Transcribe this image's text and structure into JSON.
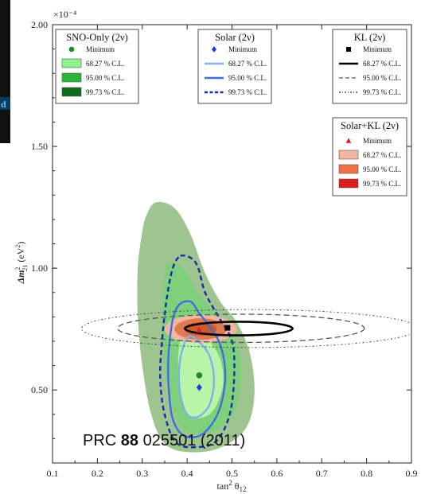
{
  "chart_data": {
    "type": "contour",
    "xlabel": "tan²θ₁₂",
    "ylabel": "Δm²₂₁ (eV²)",
    "y_scale_label": "×10⁻⁴",
    "xlim": [
      0.1,
      0.9
    ],
    "ylim": [
      0.2,
      2.0
    ],
    "x_ticks": [
      "0.1",
      "0.2",
      "0.3",
      "0.4",
      "0.5",
      "0.6",
      "0.7",
      "0.8",
      "0.9"
    ],
    "y_ticks": [
      "0.50",
      "1.00",
      "1.50",
      "2.00"
    ],
    "x_tick_values": [
      0.1,
      0.2,
      0.3,
      0.4,
      0.5,
      0.6,
      0.7,
      0.8,
      0.9
    ],
    "y_tick_values": [
      0.5,
      1.0,
      1.5,
      2.0
    ],
    "legends": [
      {
        "title": "SNO-Only (2ν)",
        "items": [
          {
            "label": "Minimum",
            "marker": "circle",
            "color": "#1e8a2e"
          },
          {
            "label": "68.27 % C.L.",
            "color": "#8ef58e"
          },
          {
            "label": "95.00 % C.L.",
            "color": "#2bb33a"
          },
          {
            "label": "99.73 % C.L.",
            "color": "#0d6b1a"
          }
        ]
      },
      {
        "title": "Solar (2ν)",
        "items": [
          {
            "label": "Minimum",
            "marker": "diamond",
            "color": "#2a3ad8"
          },
          {
            "label": "68.27 % C.L.",
            "color": "#7fb0f0"
          },
          {
            "label": "95.00 % C.L.",
            "color": "#3d6fe0"
          },
          {
            "label": "99.73 % C.L.",
            "color": "#1a2aa8"
          }
        ]
      },
      {
        "title": "KL (2ν)",
        "items": [
          {
            "label": "Minimum",
            "marker": "square",
            "color": "#000000"
          },
          {
            "label": "68.27 % C.L.",
            "color": "#000000"
          },
          {
            "label": "95.00 % C.L.",
            "color": "#555555"
          },
          {
            "label": "99.73 % C.L.",
            "color": "#333333"
          }
        ]
      },
      {
        "title": "Solar+KL (2ν)",
        "items": [
          {
            "label": "Minimum",
            "marker": "triangle",
            "color": "#d42020"
          },
          {
            "label": "68.27 % C.L.",
            "color": "#f4b6a0"
          },
          {
            "label": "95.00 % C.L.",
            "color": "#ee7046"
          },
          {
            "label": "99.73 % C.L.",
            "color": "#dd1e1e"
          }
        ]
      }
    ],
    "minima": [
      {
        "name": "SNO-Only",
        "x": 0.427,
        "y": 0.56,
        "marker": "circle",
        "color": "#1e8a2e"
      },
      {
        "name": "Solar",
        "x": 0.427,
        "y": 0.51,
        "marker": "diamond",
        "color": "#2a3ad8"
      },
      {
        "name": "KL",
        "x": 0.49,
        "y": 0.755,
        "marker": "square",
        "color": "#000000"
      },
      {
        "name": "Solar+KL",
        "x": 0.427,
        "y": 0.745,
        "marker": "triangle",
        "color": "#d42020"
      }
    ],
    "regions": {
      "sno": [
        {
          "cl": "99.73",
          "fill": "#9ec48f",
          "points": [
            [
              0.33,
              1.27
            ],
            [
              0.37,
              1.25
            ],
            [
              0.405,
              1.15
            ],
            [
              0.44,
              0.98
            ],
            [
              0.475,
              0.86
            ],
            [
              0.51,
              0.78
            ],
            [
              0.54,
              0.65
            ],
            [
              0.55,
              0.48
            ],
            [
              0.53,
              0.34
            ],
            [
              0.47,
              0.26
            ],
            [
              0.4,
              0.245
            ],
            [
              0.35,
              0.28
            ],
            [
              0.32,
              0.4
            ],
            [
              0.3,
              0.6
            ],
            [
              0.29,
              0.8
            ],
            [
              0.29,
              1.0
            ],
            [
              0.3,
              1.15
            ],
            [
              0.31,
              1.22
            ]
          ]
        },
        {
          "cl": "95.00",
          "fill": "#7ed07a",
          "points": [
            [
              0.36,
              1.02
            ],
            [
              0.39,
              1.0
            ],
            [
              0.42,
              0.91
            ],
            [
              0.46,
              0.82
            ],
            [
              0.5,
              0.74
            ],
            [
              0.52,
              0.62
            ],
            [
              0.515,
              0.47
            ],
            [
              0.49,
              0.37
            ],
            [
              0.44,
              0.32
            ],
            [
              0.39,
              0.34
            ],
            [
              0.365,
              0.45
            ],
            [
              0.35,
              0.6
            ],
            [
              0.345,
              0.78
            ],
            [
              0.348,
              0.93
            ]
          ]
        },
        {
          "cl": "68.27",
          "fill": "#b8f5a8",
          "points": [
            [
              0.39,
              0.74
            ],
            [
              0.42,
              0.73
            ],
            [
              0.45,
              0.7
            ],
            [
              0.475,
              0.62
            ],
            [
              0.48,
              0.52
            ],
            [
              0.46,
              0.42
            ],
            [
              0.43,
              0.385
            ],
            [
              0.4,
              0.4
            ],
            [
              0.385,
              0.5
            ],
            [
              0.38,
              0.62
            ]
          ]
        }
      ],
      "solar_contours": [
        {
          "cl": "99.73",
          "color": "#1a2aa8",
          "dash": "6,4",
          "width": 2.4,
          "points": [
            [
              0.385,
              1.05
            ],
            [
              0.41,
              1.04
            ],
            [
              0.425,
              1.0
            ],
            [
              0.44,
              0.9
            ],
            [
              0.47,
              0.8
            ],
            [
              0.5,
              0.7
            ],
            [
              0.505,
              0.56
            ],
            [
              0.495,
              0.4
            ],
            [
              0.465,
              0.29
            ],
            [
              0.42,
              0.265
            ],
            [
              0.375,
              0.285
            ],
            [
              0.35,
              0.4
            ],
            [
              0.34,
              0.55
            ],
            [
              0.345,
              0.72
            ],
            [
              0.355,
              0.88
            ],
            [
              0.368,
              1.0
            ]
          ]
        },
        {
          "cl": "95.00",
          "color": "#3d6fe0",
          "dash": "",
          "width": 2.4,
          "points": [
            [
              0.39,
              0.86
            ],
            [
              0.41,
              0.86
            ],
            [
              0.425,
              0.82
            ],
            [
              0.45,
              0.76
            ],
            [
              0.475,
              0.68
            ],
            [
              0.485,
              0.55
            ],
            [
              0.47,
              0.41
            ],
            [
              0.435,
              0.32
            ],
            [
              0.395,
              0.31
            ],
            [
              0.37,
              0.37
            ],
            [
              0.36,
              0.48
            ],
            [
              0.358,
              0.62
            ],
            [
              0.365,
              0.76
            ],
            [
              0.375,
              0.83
            ]
          ]
        },
        {
          "cl": "68.27",
          "color": "#7fb0f0",
          "dash": "",
          "width": 2.4,
          "points": [
            [
              0.405,
              0.72
            ],
            [
              0.425,
              0.7
            ],
            [
              0.45,
              0.64
            ],
            [
              0.46,
              0.54
            ],
            [
              0.45,
              0.44
            ],
            [
              0.425,
              0.39
            ],
            [
              0.4,
              0.4
            ],
            [
              0.385,
              0.48
            ],
            [
              0.382,
              0.58
            ],
            [
              0.39,
              0.67
            ]
          ]
        }
      ],
      "kl_contours": [
        {
          "cl": "99.73",
          "color": "#333333",
          "dash": "2,3,1,3",
          "width": 1,
          "cx": 0.54,
          "cy": 0.752,
          "rx": 0.375,
          "ry": 0.078
        },
        {
          "cl": "95.00",
          "color": "#555555",
          "dash": "7,4",
          "width": 1.3,
          "cx": 0.52,
          "cy": 0.753,
          "rx": 0.275,
          "ry": 0.058
        },
        {
          "cl": "68.27",
          "color": "#000000",
          "dash": "",
          "width": 2.6,
          "cx": 0.515,
          "cy": 0.752,
          "rx": 0.12,
          "ry": 0.028
        }
      ],
      "combined": [
        {
          "cl": "99.73",
          "fill": "#f2b7a2",
          "cx": 0.43,
          "cy": 0.75,
          "rx": 0.08,
          "ry": 0.058
        },
        {
          "cl": "95.00",
          "fill": "#e07a52",
          "cx": 0.43,
          "cy": 0.75,
          "rx": 0.058,
          "ry": 0.044
        },
        {
          "cl": "68.27",
          "fill": "#ce5a32",
          "cx": 0.43,
          "cy": 0.75,
          "rx": 0.036,
          "ry": 0.028
        }
      ]
    }
  },
  "citation": {
    "prefix": "PRC ",
    "volume": "88",
    "suffix": " 025501 (2011)"
  },
  "side_fragment": "d"
}
